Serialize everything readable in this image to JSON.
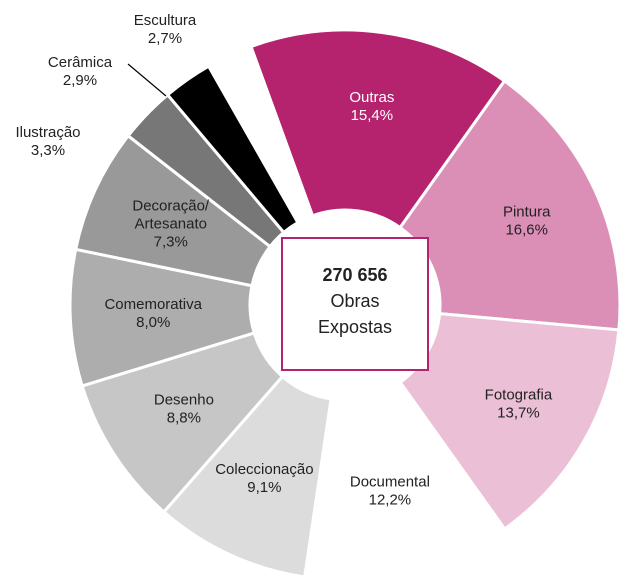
{
  "chart_data": {
    "type": "donut",
    "center_value": "270 656",
    "center_label": [
      "Obras",
      "Expostas"
    ],
    "categories": [
      "Outras",
      "Pintura",
      "Fotografia",
      "Documental",
      "Coleccionação",
      "Desenho",
      "Comemorativa",
      "Decoração/ Artesanato",
      "Ilustração",
      "Cerâmica",
      "Escultura"
    ],
    "values": [
      15.4,
      16.6,
      13.7,
      12.2,
      9.1,
      8.8,
      8.0,
      7.3,
      3.3,
      2.9,
      2.7
    ],
    "value_labels": [
      "15,4%",
      "16,6%",
      "13,7%",
      "12,2%",
      "9,1%",
      "8,8%",
      "8,0%",
      "7,3%",
      "3,3%",
      "2,9%",
      "2,7%"
    ],
    "colors": [
      "#b5236e",
      "#dc8fb6",
      "#ebbfd6",
      "#ffffff",
      "#dcdcdc",
      "#c6c6c6",
      "#adadad",
      "#999999",
      "#777777",
      "#000000",
      "#ffffff"
    ]
  }
}
